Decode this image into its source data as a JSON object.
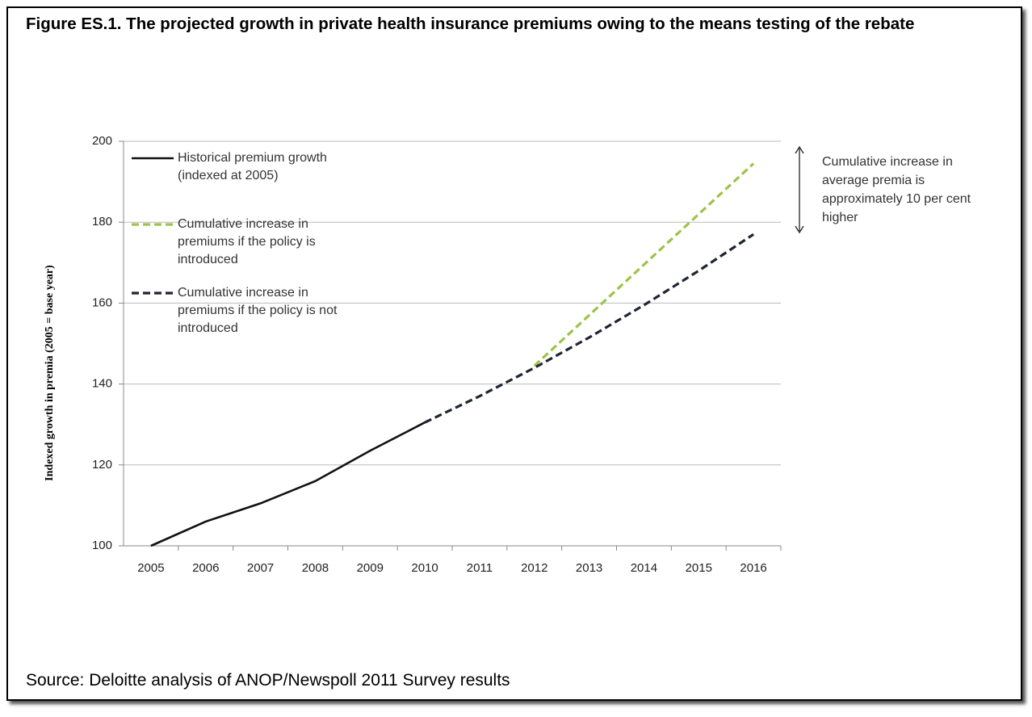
{
  "chart_data": {
    "type": "line",
    "title": "Figure ES.1. The projected growth in private health insurance premiums owing to the means testing of the rebate",
    "y_label": "Indexed growth in premia (2005 = base year)",
    "categories": [
      "2005",
      "2006",
      "2007",
      "2008",
      "2009",
      "2010",
      "2011",
      "2012",
      "2013",
      "2014",
      "2015",
      "2016"
    ],
    "series": [
      {
        "name": "Historical premium growth (indexed at 2005)",
        "color": "#111111",
        "line_style": "solid",
        "values": [
          100,
          106,
          110.5,
          116,
          123.5,
          130.5,
          null,
          null,
          null,
          null,
          null,
          null
        ]
      },
      {
        "name": "Cumulative increase in premiums if the policy is introduced",
        "color": "#9dc34a",
        "line_style": "dashed",
        "values": [
          null,
          null,
          null,
          null,
          null,
          null,
          null,
          144.5,
          157,
          169.5,
          182,
          194.5
        ]
      },
      {
        "name": "Cumulative increase in premiums if the policy is not introduced",
        "color": "#1f2533",
        "line_style": "dashed",
        "values": [
          null,
          null,
          null,
          null,
          null,
          130.5,
          137,
          144,
          151.5,
          159.5,
          168,
          177
        ]
      }
    ],
    "ylim": [
      100,
      200
    ],
    "yticks": [
      100,
      120,
      140,
      160,
      180,
      200
    ],
    "grid": true,
    "annotation": "Cumulative increase in average premia is approximately 10 per cent higher",
    "source": "Source: Deloitte analysis of ANOP/Newspoll 2011 Survey results"
  }
}
